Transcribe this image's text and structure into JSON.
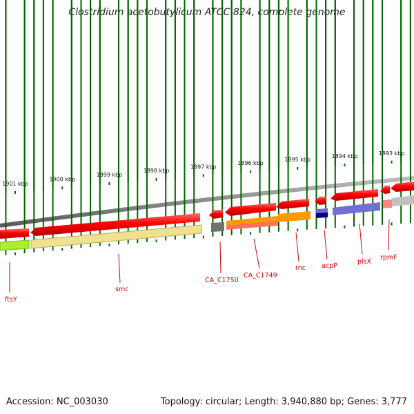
{
  "title": "Clostridium acetobutylicum ATCC 824, complete genome",
  "footer": {
    "accession": "Accession: NC_003030",
    "topology": "Topology: circular; Length: 3,940,880 bp; Genes: 3,777"
  },
  "scale_labels": [
    "1901 kbp",
    "1900 kbp",
    "1899 kbp",
    "1898 kbp",
    "1897 kbp",
    "1896 kbp",
    "1895 kbp",
    "1894 kbp",
    "1893 kbp"
  ],
  "genes": [
    {
      "name": "ftsY",
      "color": "#ff0000",
      "strand": "reverse",
      "category_color": "#a8f030"
    },
    {
      "name": "smc",
      "color": "#ff0000",
      "strand": "reverse",
      "category_color": "#f0e090"
    },
    {
      "name": "CA_C1750",
      "color": "#ff0000",
      "strand": "reverse",
      "category_color": "#707070"
    },
    {
      "name": "CA_C1749",
      "color": "#ff0000",
      "strand": "reverse",
      "category_color": "#ff9900"
    },
    {
      "name": "rnc",
      "color": "#ff0000",
      "strand": "reverse",
      "category_color": "#ff9900"
    },
    {
      "name": "acpP",
      "color": "#ff0000",
      "strand": "reverse",
      "category_color": "#000080"
    },
    {
      "name": "plsX",
      "color": "#ff0000",
      "strand": "reverse",
      "category_color": "#7070d0"
    },
    {
      "name": "rpmF",
      "color": "#ff0000",
      "strand": "reverse",
      "category_color": "#c0c0c0"
    }
  ],
  "colors": {
    "backbone": "#808080",
    "gene": "#ff0000",
    "tick": "#006600",
    "label": "#cc0000"
  }
}
